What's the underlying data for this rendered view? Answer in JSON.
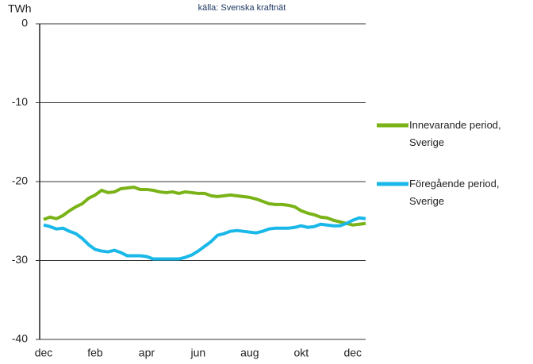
{
  "chart_data": {
    "type": "line",
    "y_label": "TWh",
    "source": "källa: Svenska kraftnät",
    "categories": [
      "dec",
      null,
      null,
      null,
      null,
      null,
      null,
      null,
      "feb",
      null,
      null,
      null,
      null,
      null,
      null,
      null,
      "apr",
      null,
      null,
      null,
      null,
      null,
      null,
      null,
      "jun",
      null,
      null,
      null,
      null,
      null,
      null,
      null,
      "aug",
      null,
      null,
      null,
      null,
      null,
      null,
      null,
      "okt",
      null,
      null,
      null,
      null,
      null,
      null,
      null,
      "dec",
      null,
      null
    ],
    "series": [
      {
        "name": "Innevarande period, Sverige",
        "color": "#7ab317",
        "values": [
          -24.8,
          -24.5,
          -24.7,
          -24.3,
          -23.7,
          -23.2,
          -22.8,
          -22.1,
          -21.7,
          -21.1,
          -21.4,
          -21.3,
          -20.9,
          -20.8,
          -20.7,
          -21.0,
          -21.0,
          -21.1,
          -21.3,
          -21.4,
          -21.3,
          -21.5,
          -21.3,
          -21.4,
          -21.5,
          -21.5,
          -21.8,
          -21.9,
          -21.8,
          -21.7,
          -21.8,
          -21.9,
          -22.0,
          -22.2,
          -22.5,
          -22.8,
          -22.9,
          -22.9,
          -23.0,
          -23.2,
          -23.7,
          -24.0,
          -24.2,
          -24.5,
          -24.6,
          -24.9,
          -25.1,
          -25.3,
          -25.5,
          -25.4,
          -25.3
        ]
      },
      {
        "name": "Föregående period, Sverige",
        "color": "#1ab8e8",
        "values": [
          -25.5,
          -25.7,
          -26.0,
          -25.9,
          -26.3,
          -26.6,
          -27.2,
          -28.0,
          -28.6,
          -28.8,
          -28.9,
          -28.7,
          -29.0,
          -29.4,
          -29.4,
          -29.4,
          -29.5,
          -29.8,
          -29.8,
          -29.8,
          -29.8,
          -29.8,
          -29.6,
          -29.3,
          -28.8,
          -28.2,
          -27.6,
          -26.8,
          -26.6,
          -26.3,
          -26.2,
          -26.3,
          -26.4,
          -26.5,
          -26.3,
          -26.0,
          -25.9,
          -25.9,
          -25.9,
          -25.8,
          -25.6,
          -25.8,
          -25.7,
          -25.4,
          -25.5,
          -25.6,
          -25.6,
          -25.3,
          -24.9,
          -24.6,
          -24.7
        ]
      }
    ],
    "ylim": [
      -40,
      0
    ],
    "yticks": [
      0,
      -10,
      -20,
      -30,
      -40
    ],
    "grid": true,
    "legend": "right"
  }
}
